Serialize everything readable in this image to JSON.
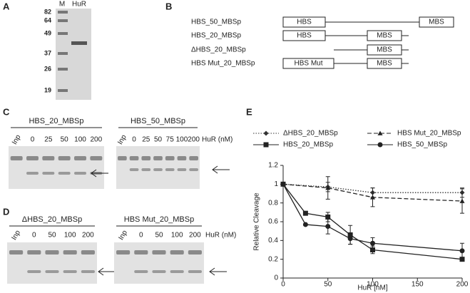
{
  "panel_a": {
    "letter": "A",
    "lanes": [
      "M",
      "HuR"
    ],
    "markers": [
      82,
      64,
      49,
      37,
      26,
      19
    ]
  },
  "panel_b": {
    "letter": "B",
    "constructs": [
      {
        "name": "HBS_50_MBSp",
        "boxes": [
          "HBS",
          "MBS"
        ]
      },
      {
        "name": "HBS_20_MBSp",
        "boxes": [
          "HBS",
          "MBS"
        ]
      },
      {
        "name": "ΔHBS_20_MBSp",
        "boxes": [
          "MBS"
        ]
      },
      {
        "name": "HBS Mut_20_MBSp",
        "boxes": [
          "HBS Mut",
          "MBS"
        ]
      }
    ]
  },
  "panel_c": {
    "letter": "C",
    "unit": "HuR (nM)",
    "gels": [
      {
        "title": "HBS_20_MBSp",
        "lanes": [
          "Inp",
          0,
          25,
          50,
          100,
          200
        ]
      },
      {
        "title": "HBS_50_MBSp",
        "lanes": [
          "Inp",
          0,
          25,
          50,
          75,
          100,
          200
        ]
      }
    ]
  },
  "panel_d": {
    "letter": "D",
    "unit": "HuR (nM)",
    "gels": [
      {
        "title": "ΔHBS_20_MBSp",
        "lanes": [
          "Inp",
          0,
          50,
          100,
          200
        ]
      },
      {
        "title": "HBS Mut_20_MBSp",
        "lanes": [
          "Inp",
          0,
          50,
          100,
          200
        ]
      }
    ]
  },
  "chart_data": {
    "type": "line",
    "panel_letter": "E",
    "x_label": "HuR [nM]",
    "y_label": "Relative Cleavage",
    "xlim": [
      0,
      200
    ],
    "xticks": [
      0,
      50,
      100,
      150,
      200
    ],
    "ylim": [
      0,
      1.2
    ],
    "yticks": [
      0,
      0.2,
      0.4,
      0.6,
      0.8,
      1,
      1.2
    ],
    "grid": false,
    "series": [
      {
        "name": "ΔHBS_20_MBSp",
        "color": "#333333",
        "line_style": "dotted",
        "marker": "diamond",
        "x": [
          0,
          50,
          100,
          200
        ],
        "values": [
          1,
          0.97,
          0.91,
          0.91
        ],
        "errors": [
          0,
          0.05,
          0.05,
          0.05
        ]
      },
      {
        "name": "HBS Mut_20_MBSp",
        "color": "#222222",
        "line_style": "dashed",
        "marker": "triangle",
        "x": [
          0,
          50,
          100,
          200
        ],
        "values": [
          1,
          0.96,
          0.86,
          0.82
        ],
        "errors": [
          0,
          0.12,
          0.1,
          0.13
        ]
      },
      {
        "name": "HBS_20_MBSp",
        "color": "#222222",
        "line_style": "solid",
        "marker": "square",
        "x": [
          0,
          25,
          50,
          75,
          100,
          200
        ],
        "values": [
          1,
          0.69,
          0.65,
          0.46,
          0.3,
          0.2
        ],
        "errors": [
          0,
          0,
          0.05,
          0.1,
          0.04,
          0.01
        ]
      },
      {
        "name": "HBS_50_MBSp",
        "color": "#222222",
        "line_style": "solid",
        "marker": "circle",
        "x": [
          0,
          25,
          50,
          75,
          100,
          200
        ],
        "values": [
          1,
          0.57,
          0.55,
          0.42,
          0.37,
          0.29
        ],
        "errors": [
          0,
          0,
          0.08,
          0.06,
          0.06,
          0.08
        ]
      }
    ]
  }
}
